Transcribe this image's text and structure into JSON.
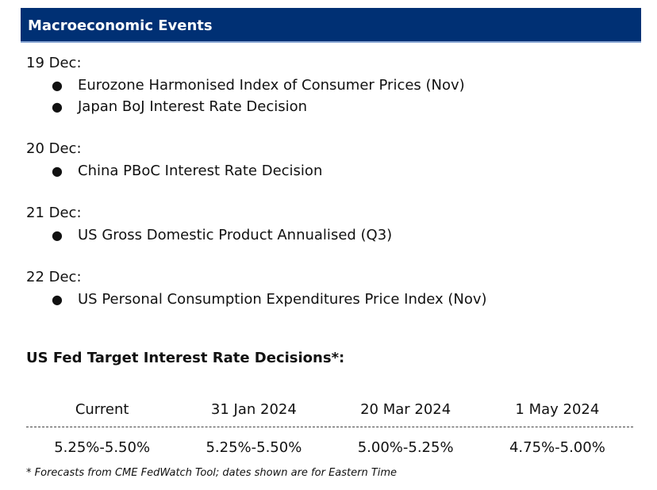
{
  "header": {
    "title": "Macroeconomic Events"
  },
  "events": [
    {
      "date": "19 Dec:",
      "items": [
        "Eurozone Harmonised Index of Consumer Prices (Nov)",
        "Japan BoJ Interest Rate Decision"
      ]
    },
    {
      "date": "20 Dec:",
      "items": [
        "China PBoC Interest Rate Decision"
      ]
    },
    {
      "date": "21 Dec:",
      "items": [
        "US Gross Domestic Product Annualised (Q3)"
      ]
    },
    {
      "date": "22 Dec:",
      "items": [
        "US Personal Consumption Expenditures Price Index (Nov)"
      ]
    }
  ],
  "bullet_symbol": "●",
  "fed": {
    "title": "US Fed Target Interest Rate Decisions*:",
    "columns": [
      "Current",
      "31 Jan 2024",
      "20 Mar 2024",
      "1 May 2024"
    ],
    "values": [
      "5.25%-5.50%",
      "5.25%-5.50%",
      "5.00%-5.25%",
      "4.75%-5.00%"
    ]
  },
  "footnote": "* Forecasts from CME FedWatch Tool; dates shown are for Eastern Time",
  "colors": {
    "header_bg": "#003074",
    "header_text": "#ffffff",
    "header_underline": "#8aa6d3"
  }
}
